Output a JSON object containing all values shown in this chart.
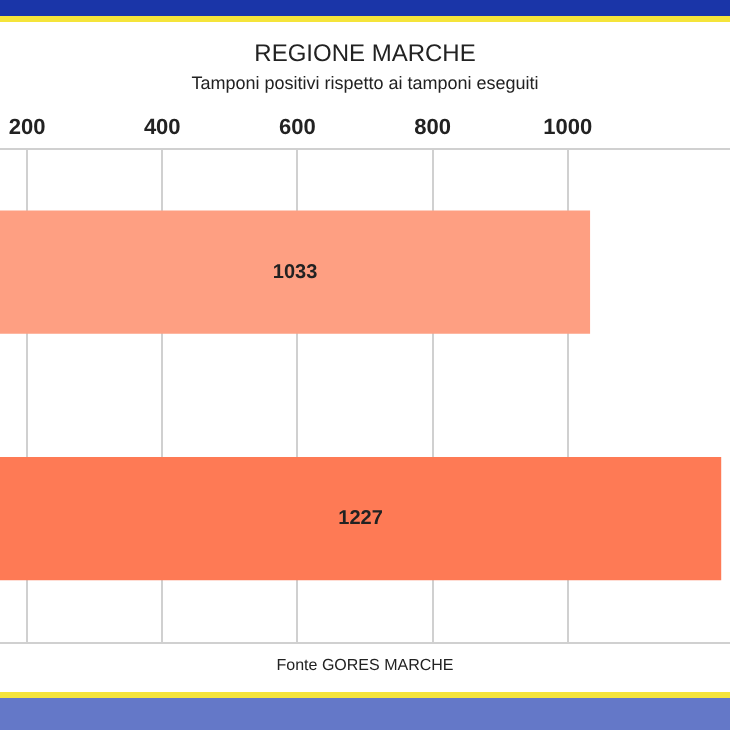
{
  "chart_data": {
    "type": "bar",
    "orientation": "horizontal",
    "title": "REGIONE MARCHE",
    "subtitle": "Tamponi positivi rispetto ai tamponi eseguiti",
    "categories": [
      null,
      null
    ],
    "series": [
      {
        "color": "#fe9f82",
        "values": [
          1033,
          null
        ]
      },
      {
        "color": "#fe7a55",
        "values": [
          null,
          1227
        ]
      }
    ],
    "xlim": [
      160,
      1240
    ],
    "xticks": [
      200,
      400,
      600,
      800,
      1000
    ],
    "grid": "x",
    "tick_labels": "x",
    "legend": false,
    "data_labels": true,
    "annotations": [
      "Fonte GORES MARCHE"
    ]
  }
}
